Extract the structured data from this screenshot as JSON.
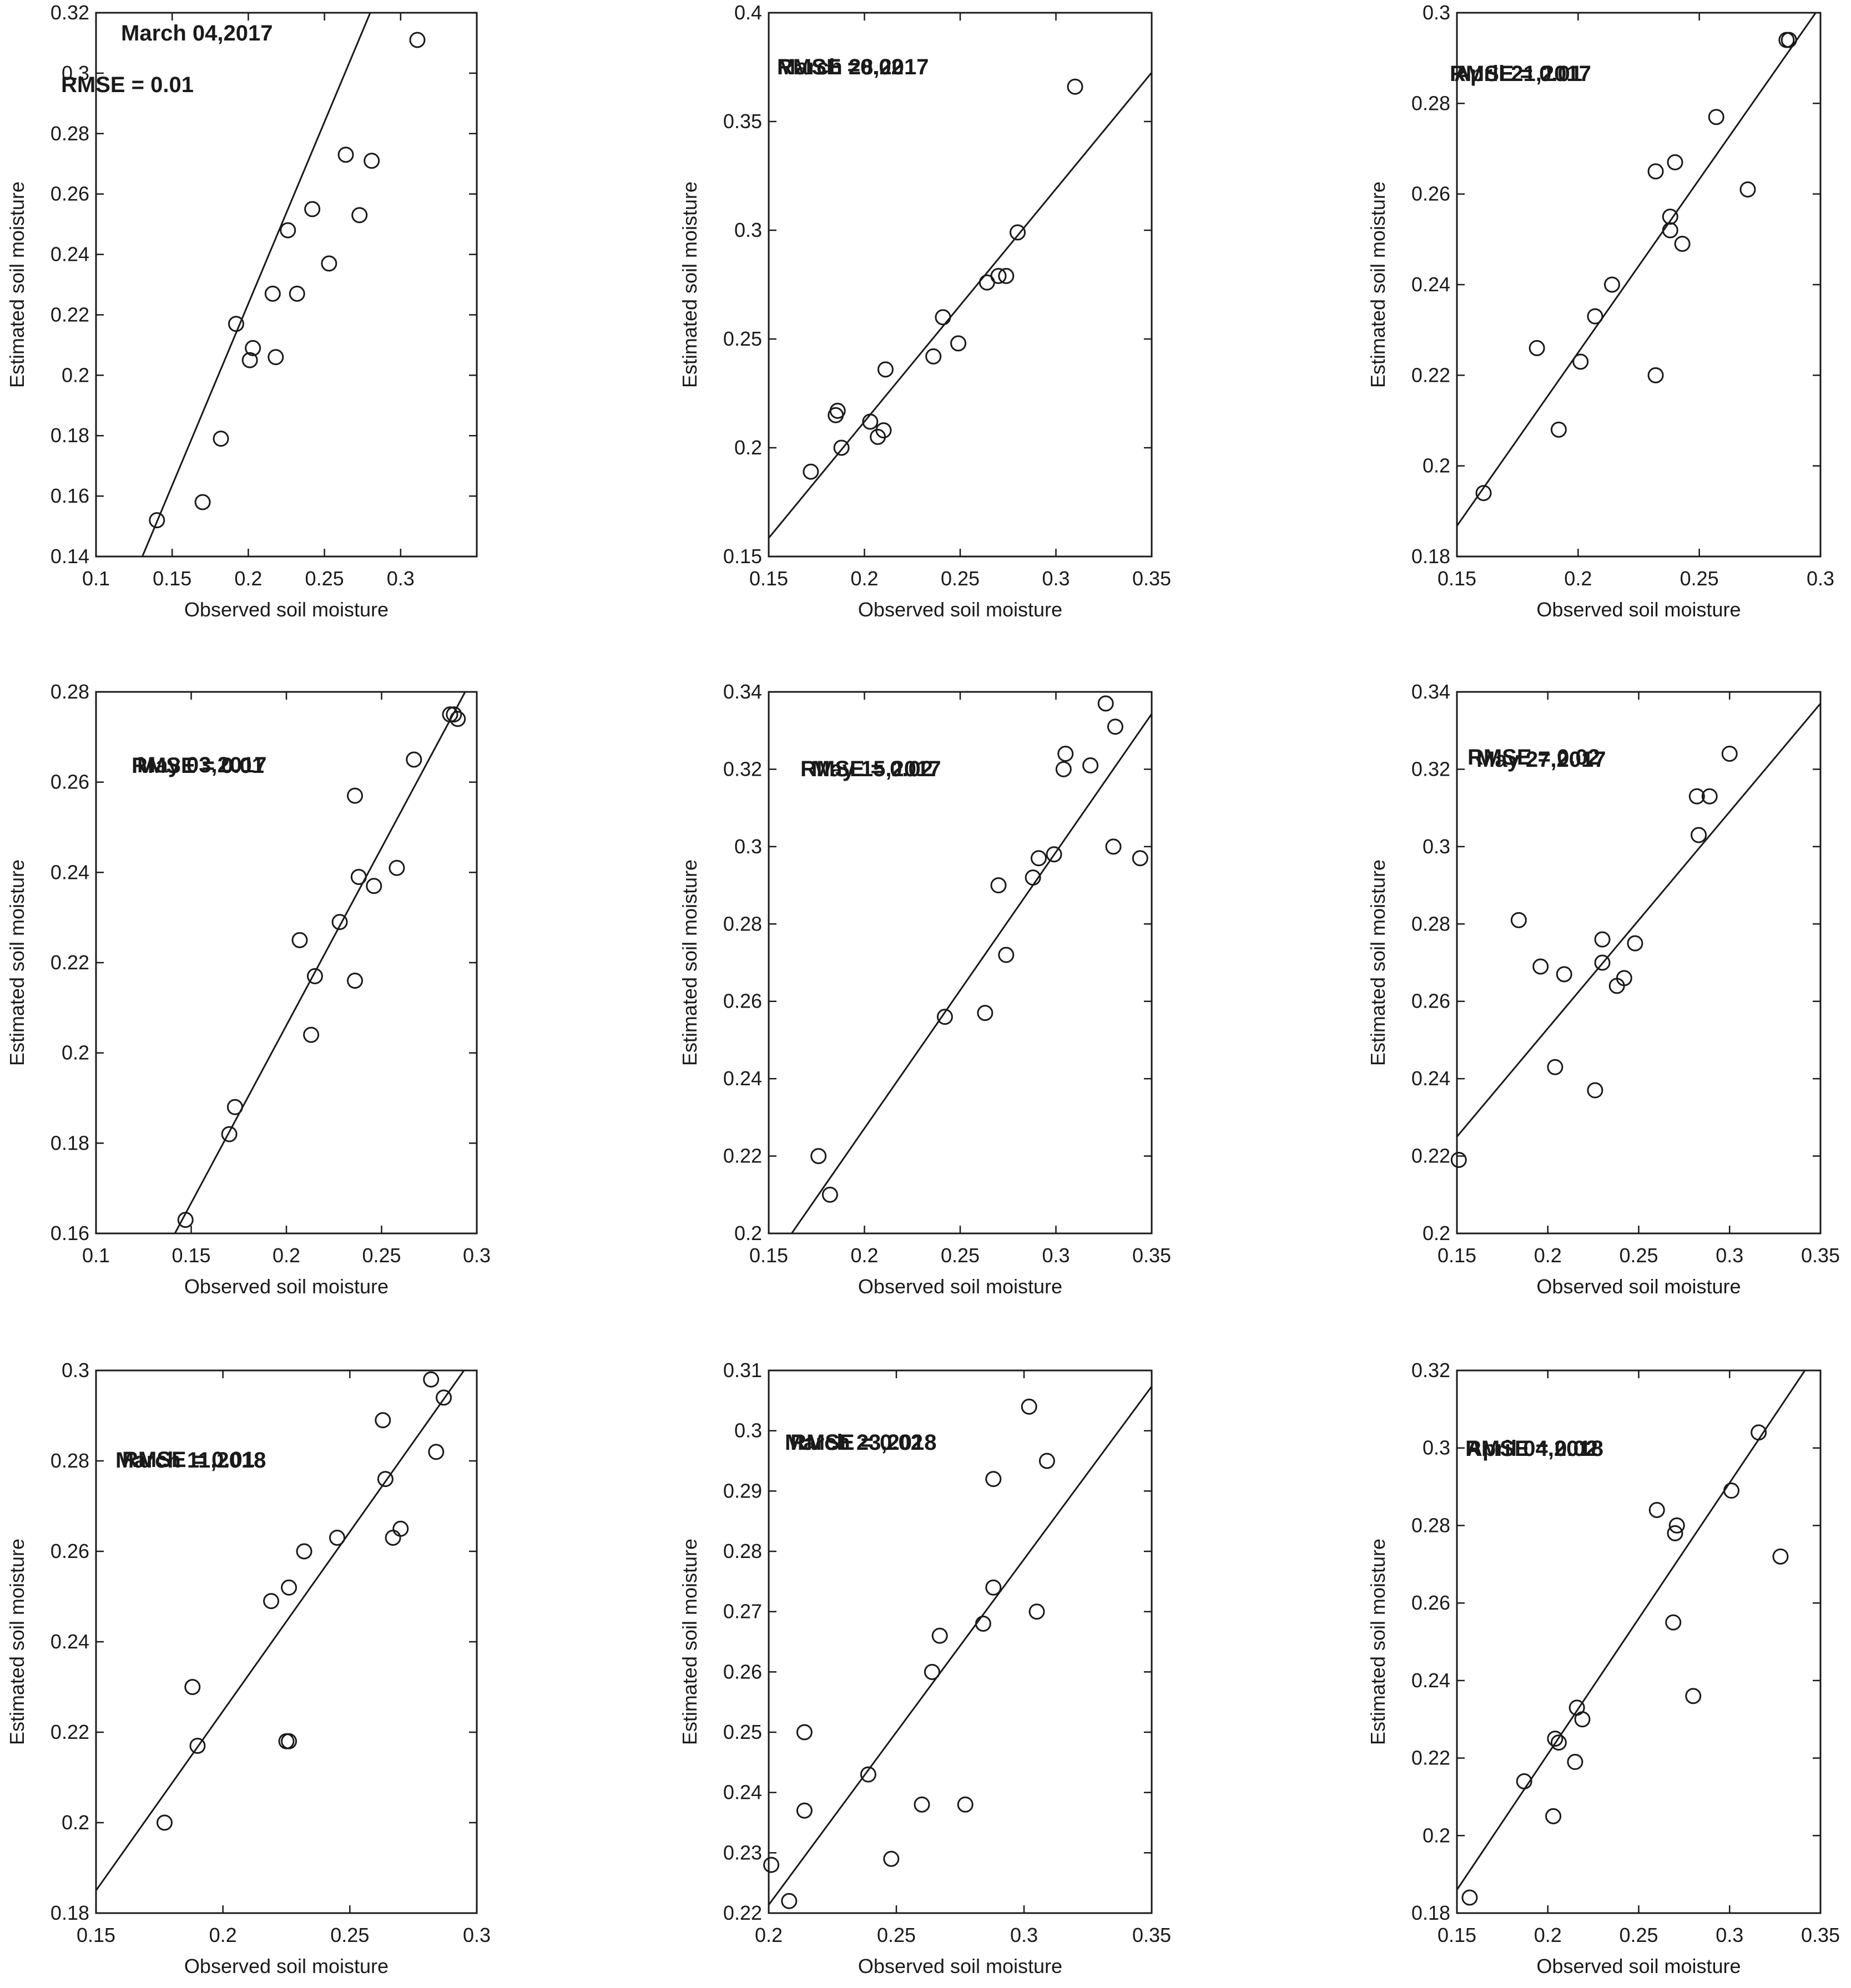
{
  "colors": {
    "ink": "#1a1a1a",
    "background": "#ffffff"
  },
  "chart_data": [
    {
      "type": "scatter",
      "date": "March 04,2017",
      "rmse": "RMSE = 0.01",
      "xlabel": "Observed soil moisture",
      "ylabel": "Estimated soil moisture",
      "xlim": [
        0.1,
        0.35
      ],
      "ylim": [
        0.14,
        0.32
      ],
      "xticks": [
        "0.1",
        "0.15",
        "0.2",
        "0.25",
        "0.3"
      ],
      "yticks": [
        "0.14",
        "0.16",
        "0.18",
        "0.2",
        "0.22",
        "0.24",
        "0.26",
        "0.28",
        "0.3",
        "0.32"
      ],
      "fit": {
        "slope": 1.203,
        "intercept": -0.0169
      },
      "points": [
        [
          0.14,
          0.152
        ],
        [
          0.17,
          0.158
        ],
        [
          0.182,
          0.179
        ],
        [
          0.192,
          0.217
        ],
        [
          0.201,
          0.205
        ],
        [
          0.203,
          0.209
        ],
        [
          0.216,
          0.227
        ],
        [
          0.218,
          0.206
        ],
        [
          0.226,
          0.248
        ],
        [
          0.232,
          0.227
        ],
        [
          0.242,
          0.255
        ],
        [
          0.253,
          0.237
        ],
        [
          0.264,
          0.273
        ],
        [
          0.273,
          0.253
        ],
        [
          0.281,
          0.271
        ],
        [
          0.311,
          0.311
        ]
      ]
    },
    {
      "type": "scatter",
      "date": "March 28,2017",
      "rmse": "RMSE =0.02",
      "xlabel": "Observed soil moisture",
      "ylabel": "Estimated soil moisture",
      "xlim": [
        0.15,
        0.35
      ],
      "ylim": [
        0.15,
        0.4
      ],
      "xticks": [
        "0.15",
        "0.2",
        "0.25",
        "0.3",
        "0.35"
      ],
      "yticks": [
        "0.15",
        "0.2",
        "0.25",
        "0.3",
        "0.35",
        "0.4"
      ],
      "fit": {
        "slope": 1.07,
        "intercept": -0.002
      },
      "points": [
        [
          0.172,
          0.189
        ],
        [
          0.185,
          0.215
        ],
        [
          0.186,
          0.217
        ],
        [
          0.188,
          0.2
        ],
        [
          0.203,
          0.212
        ],
        [
          0.207,
          0.205
        ],
        [
          0.21,
          0.208
        ],
        [
          0.211,
          0.236
        ],
        [
          0.236,
          0.242
        ],
        [
          0.241,
          0.26
        ],
        [
          0.249,
          0.248
        ],
        [
          0.264,
          0.276
        ],
        [
          0.27,
          0.279
        ],
        [
          0.274,
          0.279
        ],
        [
          0.28,
          0.299
        ],
        [
          0.31,
          0.366
        ]
      ]
    },
    {
      "type": "scatter",
      "date": "April 21,2017",
      "rmse": "RMSE = 0.01",
      "xlabel": "Observed soil moisture",
      "ylabel": "Estimated soil moisture",
      "xlim": [
        0.15,
        0.3
      ],
      "ylim": [
        0.18,
        0.3
      ],
      "xticks": [
        "0.15",
        "0.2",
        "0.25",
        "0.3"
      ],
      "yticks": [
        "0.18",
        "0.2",
        "0.22",
        "0.24",
        "0.26",
        "0.28",
        "0.3"
      ],
      "fit": {
        "slope": 0.765,
        "intercept": 0.072
      },
      "points": [
        [
          0.161,
          0.194
        ],
        [
          0.183,
          0.226
        ],
        [
          0.192,
          0.208
        ],
        [
          0.201,
          0.223
        ],
        [
          0.207,
          0.233
        ],
        [
          0.214,
          0.24
        ],
        [
          0.232,
          0.265
        ],
        [
          0.232,
          0.22
        ],
        [
          0.238,
          0.255
        ],
        [
          0.238,
          0.252
        ],
        [
          0.24,
          0.267
        ],
        [
          0.243,
          0.249
        ],
        [
          0.257,
          0.277
        ],
        [
          0.27,
          0.261
        ],
        [
          0.286,
          0.294
        ],
        [
          0.287,
          0.294
        ]
      ]
    },
    {
      "type": "scatter",
      "date": "May  03,2017",
      "rmse": "RMSE = 0.01",
      "xlabel": "Observed soil moisture",
      "ylabel": "Estimated soil moisture",
      "xlim": [
        0.1,
        0.3
      ],
      "ylim": [
        0.16,
        0.28
      ],
      "xticks": [
        "0.1",
        "0.15",
        "0.2",
        "0.25",
        "0.3"
      ],
      "yticks": [
        "0.16",
        "0.18",
        "0.2",
        "0.22",
        "0.24",
        "0.26",
        "0.28"
      ],
      "fit": {
        "slope": 0.787,
        "intercept": 0.0487
      },
      "points": [
        [
          0.147,
          0.163
        ],
        [
          0.17,
          0.182
        ],
        [
          0.173,
          0.188
        ],
        [
          0.207,
          0.225
        ],
        [
          0.213,
          0.204
        ],
        [
          0.215,
          0.217
        ],
        [
          0.228,
          0.229
        ],
        [
          0.236,
          0.257
        ],
        [
          0.236,
          0.216
        ],
        [
          0.238,
          0.239
        ],
        [
          0.246,
          0.237
        ],
        [
          0.258,
          0.241
        ],
        [
          0.267,
          0.265
        ],
        [
          0.286,
          0.275
        ],
        [
          0.288,
          0.275
        ],
        [
          0.29,
          0.274
        ]
      ]
    },
    {
      "type": "scatter",
      "date": "May 15,2017",
      "rmse": "RMSE = 0.02",
      "xlabel": "Observed soil moisture",
      "ylabel": "Estimated soil moisture",
      "xlim": [
        0.15,
        0.35
      ],
      "ylim": [
        0.2,
        0.34
      ],
      "xticks": [
        "0.15",
        "0.2",
        "0.25",
        "0.3",
        "0.35"
      ],
      "yticks": [
        "0.2",
        "0.22",
        "0.24",
        "0.26",
        "0.28",
        "0.3",
        "0.32",
        "0.34"
      ],
      "fit": {
        "slope": 0.7143,
        "intercept": 0.0843
      },
      "points": [
        [
          0.176,
          0.22
        ],
        [
          0.182,
          0.21
        ],
        [
          0.242,
          0.256
        ],
        [
          0.263,
          0.257
        ],
        [
          0.27,
          0.29
        ],
        [
          0.274,
          0.272
        ],
        [
          0.288,
          0.292
        ],
        [
          0.291,
          0.297
        ],
        [
          0.299,
          0.298
        ],
        [
          0.304,
          0.32
        ],
        [
          0.305,
          0.324
        ],
        [
          0.318,
          0.321
        ],
        [
          0.326,
          0.337
        ],
        [
          0.33,
          0.3
        ],
        [
          0.331,
          0.331
        ],
        [
          0.344,
          0.297
        ]
      ]
    },
    {
      "type": "scatter",
      "date": "May 27,2017",
      "rmse": "RMSE = 0.02",
      "xlabel": "Observed soil moisture",
      "ylabel": "Estimated soil moisture",
      "xlim": [
        0.15,
        0.35
      ],
      "ylim": [
        0.2,
        0.34
      ],
      "xticks": [
        "0.15",
        "0.2",
        "0.25",
        "0.3",
        "0.35"
      ],
      "yticks": [
        "0.2",
        "0.22",
        "0.24",
        "0.26",
        "0.28",
        "0.3",
        "0.32",
        "0.34"
      ],
      "fit": {
        "slope": 0.56,
        "intercept": 0.141
      },
      "points": [
        [
          0.151,
          0.219
        ],
        [
          0.184,
          0.281
        ],
        [
          0.196,
          0.269
        ],
        [
          0.204,
          0.243
        ],
        [
          0.209,
          0.267
        ],
        [
          0.226,
          0.237
        ],
        [
          0.23,
          0.276
        ],
        [
          0.23,
          0.27
        ],
        [
          0.238,
          0.264
        ],
        [
          0.242,
          0.266
        ],
        [
          0.248,
          0.275
        ],
        [
          0.282,
          0.313
        ],
        [
          0.283,
          0.303
        ],
        [
          0.289,
          0.313
        ],
        [
          0.3,
          0.324
        ]
      ]
    },
    {
      "type": "scatter",
      "date": "March  11,2018",
      "rmse": "RMSE = 0.01",
      "xlabel": "Observed soil moisture",
      "ylabel": "Estimated soil moisture",
      "xlim": [
        0.15,
        0.3
      ],
      "ylim": [
        0.18,
        0.3
      ],
      "xticks": [
        "0.15",
        "0.2",
        "0.25",
        "0.3"
      ],
      "yticks": [
        "0.18",
        "0.2",
        "0.22",
        "0.24",
        "0.26",
        "0.28",
        "0.3"
      ],
      "fit": {
        "slope": 0.7933,
        "intercept": 0.066
      },
      "points": [
        [
          0.177,
          0.2
        ],
        [
          0.188,
          0.23
        ],
        [
          0.19,
          0.217
        ],
        [
          0.219,
          0.249
        ],
        [
          0.225,
          0.218
        ],
        [
          0.226,
          0.218
        ],
        [
          0.226,
          0.252
        ],
        [
          0.232,
          0.26
        ],
        [
          0.245,
          0.263
        ],
        [
          0.263,
          0.289
        ],
        [
          0.264,
          0.276
        ],
        [
          0.267,
          0.263
        ],
        [
          0.27,
          0.265
        ],
        [
          0.282,
          0.298
        ],
        [
          0.284,
          0.282
        ],
        [
          0.287,
          0.294
        ]
      ]
    },
    {
      "type": "scatter",
      "date": "March  23,2018",
      "rmse": "RMSE = 0.02",
      "xlabel": "Observed soil moisture",
      "ylabel": "Estimated soil moisture",
      "xlim": [
        0.2,
        0.35
      ],
      "ylim": [
        0.22,
        0.31
      ],
      "xticks": [
        "0.2",
        "0.25",
        "0.3",
        "0.35"
      ],
      "yticks": [
        "0.22",
        "0.23",
        "0.24",
        "0.25",
        "0.26",
        "0.27",
        "0.28",
        "0.29",
        "0.3",
        "0.31"
      ],
      "fit": {
        "slope": 0.5733,
        "intercept": 0.1067
      },
      "points": [
        [
          0.201,
          0.228
        ],
        [
          0.208,
          0.222
        ],
        [
          0.214,
          0.237
        ],
        [
          0.214,
          0.25
        ],
        [
          0.239,
          0.243
        ],
        [
          0.248,
          0.229
        ],
        [
          0.26,
          0.238
        ],
        [
          0.264,
          0.26
        ],
        [
          0.267,
          0.266
        ],
        [
          0.277,
          0.238
        ],
        [
          0.284,
          0.268
        ],
        [
          0.288,
          0.274
        ],
        [
          0.288,
          0.292
        ],
        [
          0.302,
          0.304
        ],
        [
          0.305,
          0.27
        ],
        [
          0.309,
          0.295
        ]
      ]
    },
    {
      "type": "scatter",
      "date": "April  04,2018",
      "rmse": "RMSE = 0.02",
      "xlabel": "Observed soil moisture",
      "ylabel": "Estimated soil moisture",
      "xlim": [
        0.15,
        0.35
      ],
      "ylim": [
        0.18,
        0.32
      ],
      "xticks": [
        "0.15",
        "0.2",
        "0.25",
        "0.3",
        "0.35"
      ],
      "yticks": [
        "0.18",
        "0.2",
        "0.22",
        "0.24",
        "0.26",
        "0.28",
        "0.3",
        "0.32"
      ],
      "fit": {
        "slope": 0.7,
        "intercept": 0.081
      },
      "points": [
        [
          0.157,
          0.184
        ],
        [
          0.187,
          0.214
        ],
        [
          0.203,
          0.205
        ],
        [
          0.204,
          0.225
        ],
        [
          0.206,
          0.224
        ],
        [
          0.215,
          0.219
        ],
        [
          0.216,
          0.233
        ],
        [
          0.219,
          0.23
        ],
        [
          0.26,
          0.284
        ],
        [
          0.269,
          0.255
        ],
        [
          0.27,
          0.278
        ],
        [
          0.271,
          0.28
        ],
        [
          0.28,
          0.236
        ],
        [
          0.301,
          0.289
        ],
        [
          0.316,
          0.304
        ],
        [
          0.328,
          0.272
        ]
      ]
    }
  ]
}
